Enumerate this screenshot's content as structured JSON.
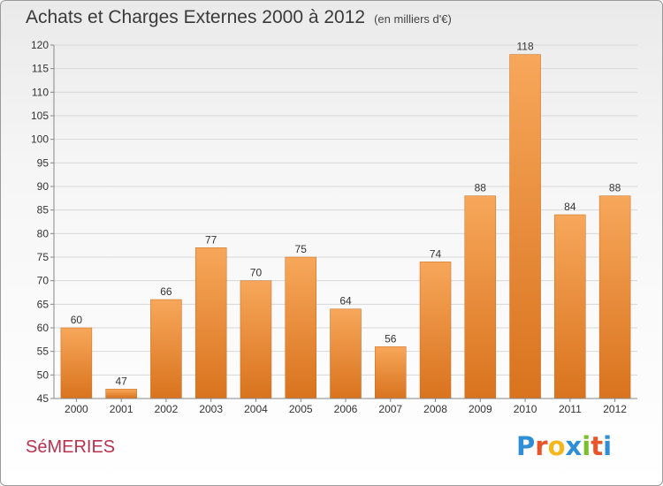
{
  "header": {
    "title": "Achats et Charges Externes 2000 à 2012",
    "subtitle": "(en milliers d'€)"
  },
  "footer": {
    "commune": "SéMERIES",
    "brand_letters": [
      "P",
      "r",
      "o",
      "x",
      "i",
      "t",
      "i"
    ],
    "brand_colors": [
      "#2e8fd6",
      "#e8552b",
      "#f5b81c",
      "#2e8fd6",
      "#7bbf2e",
      "#e8552b",
      "#2e8fd6"
    ]
  },
  "colors": {
    "bar_top": "#f7a75a",
    "bar_bottom": "#d9731e",
    "grid": "#d8d8d8",
    "axis": "#888888",
    "text": "#333333"
  },
  "chart_data": {
    "type": "bar",
    "categories": [
      "2000",
      "2001",
      "2002",
      "2003",
      "2004",
      "2005",
      "2006",
      "2007",
      "2008",
      "2009",
      "2010",
      "2011",
      "2012"
    ],
    "values": [
      60,
      47,
      66,
      77,
      70,
      75,
      64,
      56,
      74,
      88,
      118,
      84,
      88
    ],
    "ylim": [
      45,
      120
    ],
    "yticks": [
      45,
      50,
      55,
      60,
      65,
      70,
      75,
      80,
      85,
      90,
      95,
      100,
      105,
      110,
      115,
      120
    ],
    "grid": true,
    "data_labels": true
  }
}
